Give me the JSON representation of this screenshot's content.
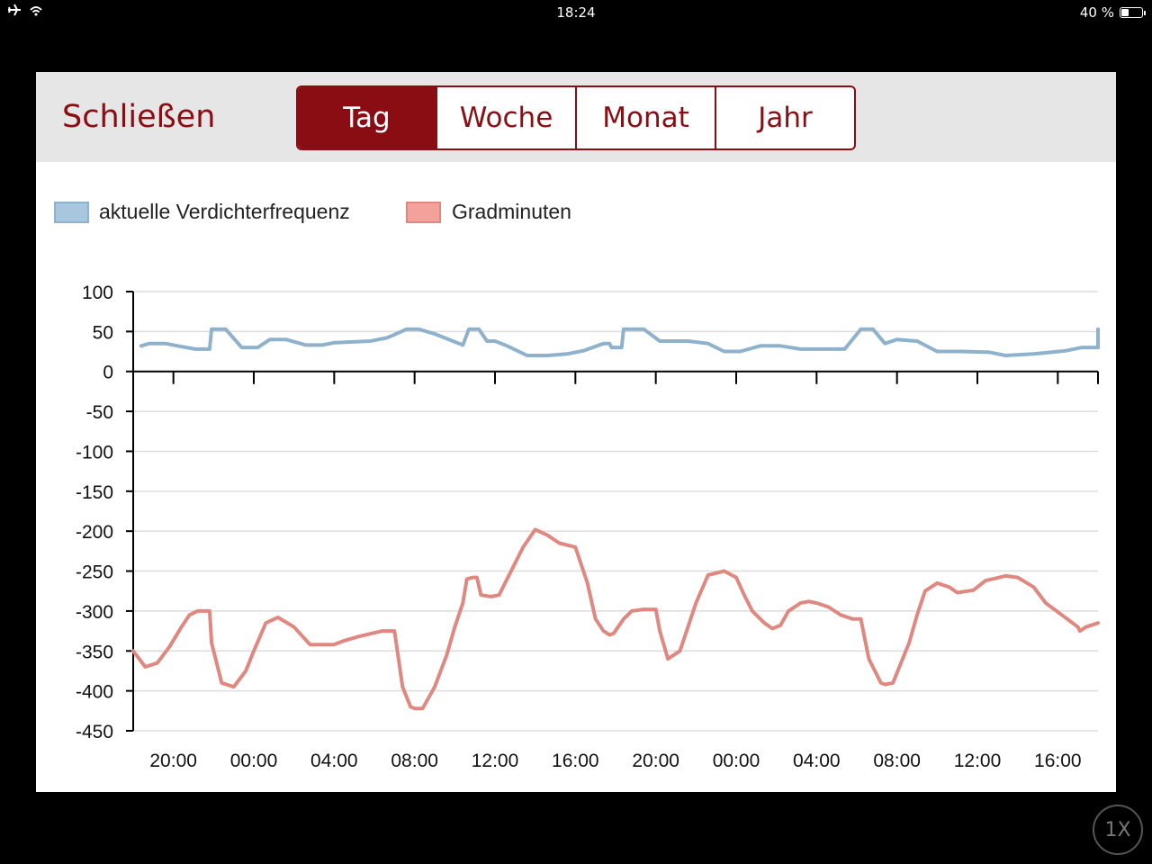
{
  "status": {
    "time": "18:24",
    "battery": "40 %",
    "battery_level": 0.4
  },
  "toolbar": {
    "close_label": "Schließen",
    "tabs": [
      "Tag",
      "Woche",
      "Monat",
      "Jahr"
    ],
    "active_tab": 0
  },
  "zoom_label": "1X",
  "colors": {
    "accent": "#8b0d14",
    "series1": "#8eb1cc",
    "series2": "#e08880",
    "toolbar_bg": "#e6e6e6"
  },
  "chart_data": {
    "type": "line",
    "title": "",
    "xlabel": "",
    "ylabel": "",
    "ylim": [
      -450,
      100
    ],
    "yticks": [
      100,
      50,
      0,
      -50,
      -100,
      -150,
      -200,
      -250,
      -300,
      -350,
      -400,
      -450
    ],
    "xlim": [
      -2,
      46
    ],
    "xticks": [
      0,
      4,
      8,
      12,
      16,
      20,
      24,
      28,
      32,
      36,
      40,
      44
    ],
    "xtick_labels": [
      "20:00",
      "00:00",
      "04:00",
      "08:00",
      "12:00",
      "16:00",
      "20:00",
      "00:00",
      "04:00",
      "08:00",
      "12:00",
      "16:00"
    ],
    "grid": true,
    "legend_position": "top-left",
    "series": [
      {
        "name": "aktuelle Verdichterfrequenz",
        "color": "#8eb1cc",
        "x": [
          -1.6,
          -1.2,
          -0.4,
          0.2,
          1.1,
          1.2,
          1.8,
          1.9,
          2.6,
          3.4,
          4.2,
          4.8,
          5.6,
          6.6,
          7.4,
          8.0,
          9.8,
          10.2,
          10.6,
          10.9,
          11.6,
          12.2,
          13.0,
          14.4,
          14.7,
          14.9,
          15.2,
          15.6,
          16.0,
          16.6,
          17.6,
          18.6,
          19.6,
          20.4,
          21.4,
          21.7,
          21.8,
          22.3,
          22.4,
          23.4,
          24.2,
          25.6,
          26.6,
          27.4,
          28.2,
          29.2,
          30.2,
          31.2,
          32.6,
          33.4,
          34.2,
          34.8,
          35.4,
          36.0,
          37.0,
          38.0,
          39.2,
          40.6,
          41.4,
          42.8,
          44.4,
          45.2,
          46.0,
          46.0
        ],
        "y": [
          32,
          35,
          35,
          32,
          28,
          28,
          28,
          53,
          53,
          30,
          30,
          40,
          40,
          33,
          33,
          36,
          38,
          40,
          42,
          45,
          53,
          53,
          47,
          33,
          53,
          53,
          53,
          38,
          38,
          32,
          20,
          20,
          22,
          26,
          35,
          35,
          30,
          30,
          53,
          53,
          38,
          38,
          35,
          25,
          25,
          32,
          32,
          28,
          28,
          28,
          53,
          53,
          35,
          40,
          38,
          25,
          25,
          24,
          20,
          22,
          26,
          30,
          30,
          53
        ]
      },
      {
        "name": "Gradminuten",
        "color": "#e08880",
        "x": [
          -2.0,
          -1.4,
          -0.8,
          -0.2,
          0.4,
          0.8,
          1.2,
          1.8,
          1.9,
          2.4,
          3.0,
          3.6,
          4.0,
          4.6,
          5.2,
          6.0,
          6.8,
          8.0,
          8.4,
          9.2,
          10.4,
          11.0,
          11.4,
          11.8,
          12.0,
          12.4,
          13.0,
          13.6,
          14.0,
          14.4,
          14.6,
          14.9,
          15.1,
          15.3,
          15.8,
          16.2,
          16.8,
          17.4,
          18.0,
          18.6,
          19.2,
          20.0,
          20.6,
          21.0,
          21.4,
          21.7,
          21.9,
          22.4,
          22.8,
          23.4,
          24.0,
          24.2,
          24.6,
          25.2,
          25.6,
          26.0,
          26.6,
          27.4,
          28.0,
          28.4,
          28.8,
          29.4,
          29.8,
          30.2,
          30.6,
          31.2,
          31.6,
          32.0,
          32.6,
          33.2,
          33.8,
          34.2,
          34.6,
          35.2,
          35.4,
          35.8,
          36.2,
          36.6,
          37.0,
          37.4,
          38.0,
          38.6,
          39.0,
          39.8,
          40.4,
          41.4,
          42.0,
          42.8,
          43.4,
          44.2,
          45.0,
          45.1,
          45.4,
          46.0
        ],
        "y": [
          -350,
          -370,
          -365,
          -345,
          -320,
          -305,
          -300,
          -300,
          -340,
          -390,
          -395,
          -375,
          -350,
          -315,
          -308,
          -320,
          -342,
          -342,
          -338,
          -332,
          -325,
          -325,
          -395,
          -420,
          -422,
          -422,
          -395,
          -355,
          -320,
          -290,
          -260,
          -258,
          -258,
          -280,
          -282,
          -280,
          -250,
          -220,
          -198,
          -205,
          -215,
          -220,
          -265,
          -310,
          -325,
          -330,
          -328,
          -310,
          -300,
          -298,
          -298,
          -325,
          -360,
          -350,
          -320,
          -290,
          -255,
          -250,
          -258,
          -280,
          -300,
          -315,
          -322,
          -318,
          -300,
          -290,
          -288,
          -290,
          -295,
          -305,
          -310,
          -310,
          -360,
          -390,
          -392,
          -390,
          -365,
          -340,
          -305,
          -275,
          -265,
          -270,
          -277,
          -274,
          -262,
          -256,
          -258,
          -270,
          -290,
          -305,
          -320,
          -325,
          -320,
          -315
        ]
      }
    ]
  }
}
